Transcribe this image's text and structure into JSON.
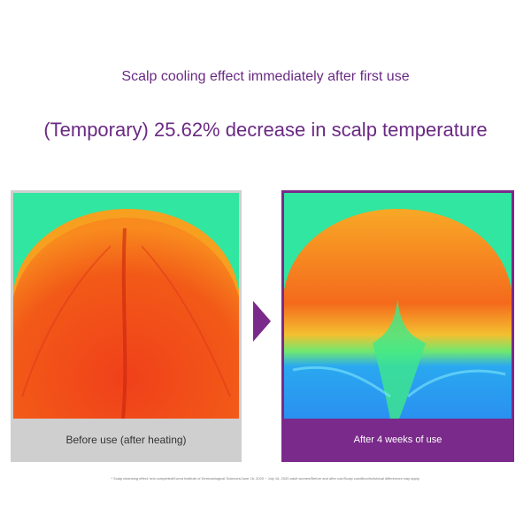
{
  "header": {
    "subtitle": "Scalp cooling effect immediately after first use",
    "headline": "(Temporary) 25.62% decrease in scalp temperature"
  },
  "panels": [
    {
      "caption": "Before use (after heating)"
    },
    {
      "caption": "After 4 weeks of use"
    }
  ],
  "footnote": "* Scalp cleansing effect: test completed/Korea Institute of Dermatological Sciences/June 16, 2020 ~ July 16, 2020 adult women/Before and after use/Scalp condition/Individual differences may apply."
}
